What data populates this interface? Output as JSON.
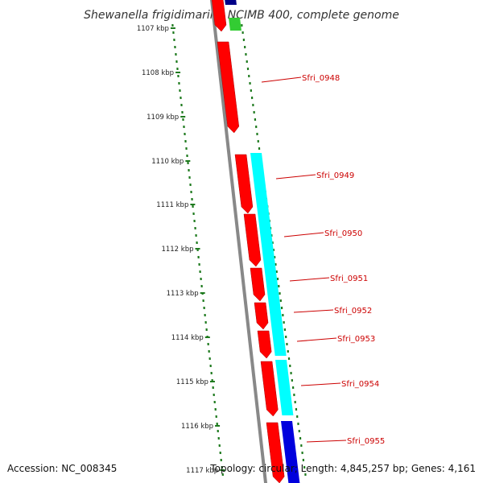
{
  "title": "Shewanella frigidimarina NCIMB 400, complete genome",
  "footer": {
    "accession": "Accession: NC_008345",
    "summary": "Topology: circular; Length: 4,845,257 bp; Genes: 4,161"
  },
  "colors": {
    "backbone": "#888888",
    "tick": "#1e7a1e",
    "forward_cds": "#ff0000",
    "cyan_feature": "#00ffff",
    "blue_feature": "#0000dd",
    "green_feature": "#33cc33",
    "navy_feature": "#000088",
    "label": "#cc0000"
  },
  "ticks": [
    "1107 kbp",
    "1108 kbp",
    "1109 kbp",
    "1110 kbp",
    "1111 kbp",
    "1112 kbp",
    "1113 kbp",
    "1114 kbp",
    "1115 kbp",
    "1116 kbp",
    "1117 kbp"
  ],
  "gene_labels": [
    "Sfri_0948",
    "Sfri_0949",
    "Sfri_0950",
    "Sfri_0951",
    "Sfri_0952",
    "Sfri_0953",
    "Sfri_0954",
    "Sfri_0955"
  ]
}
